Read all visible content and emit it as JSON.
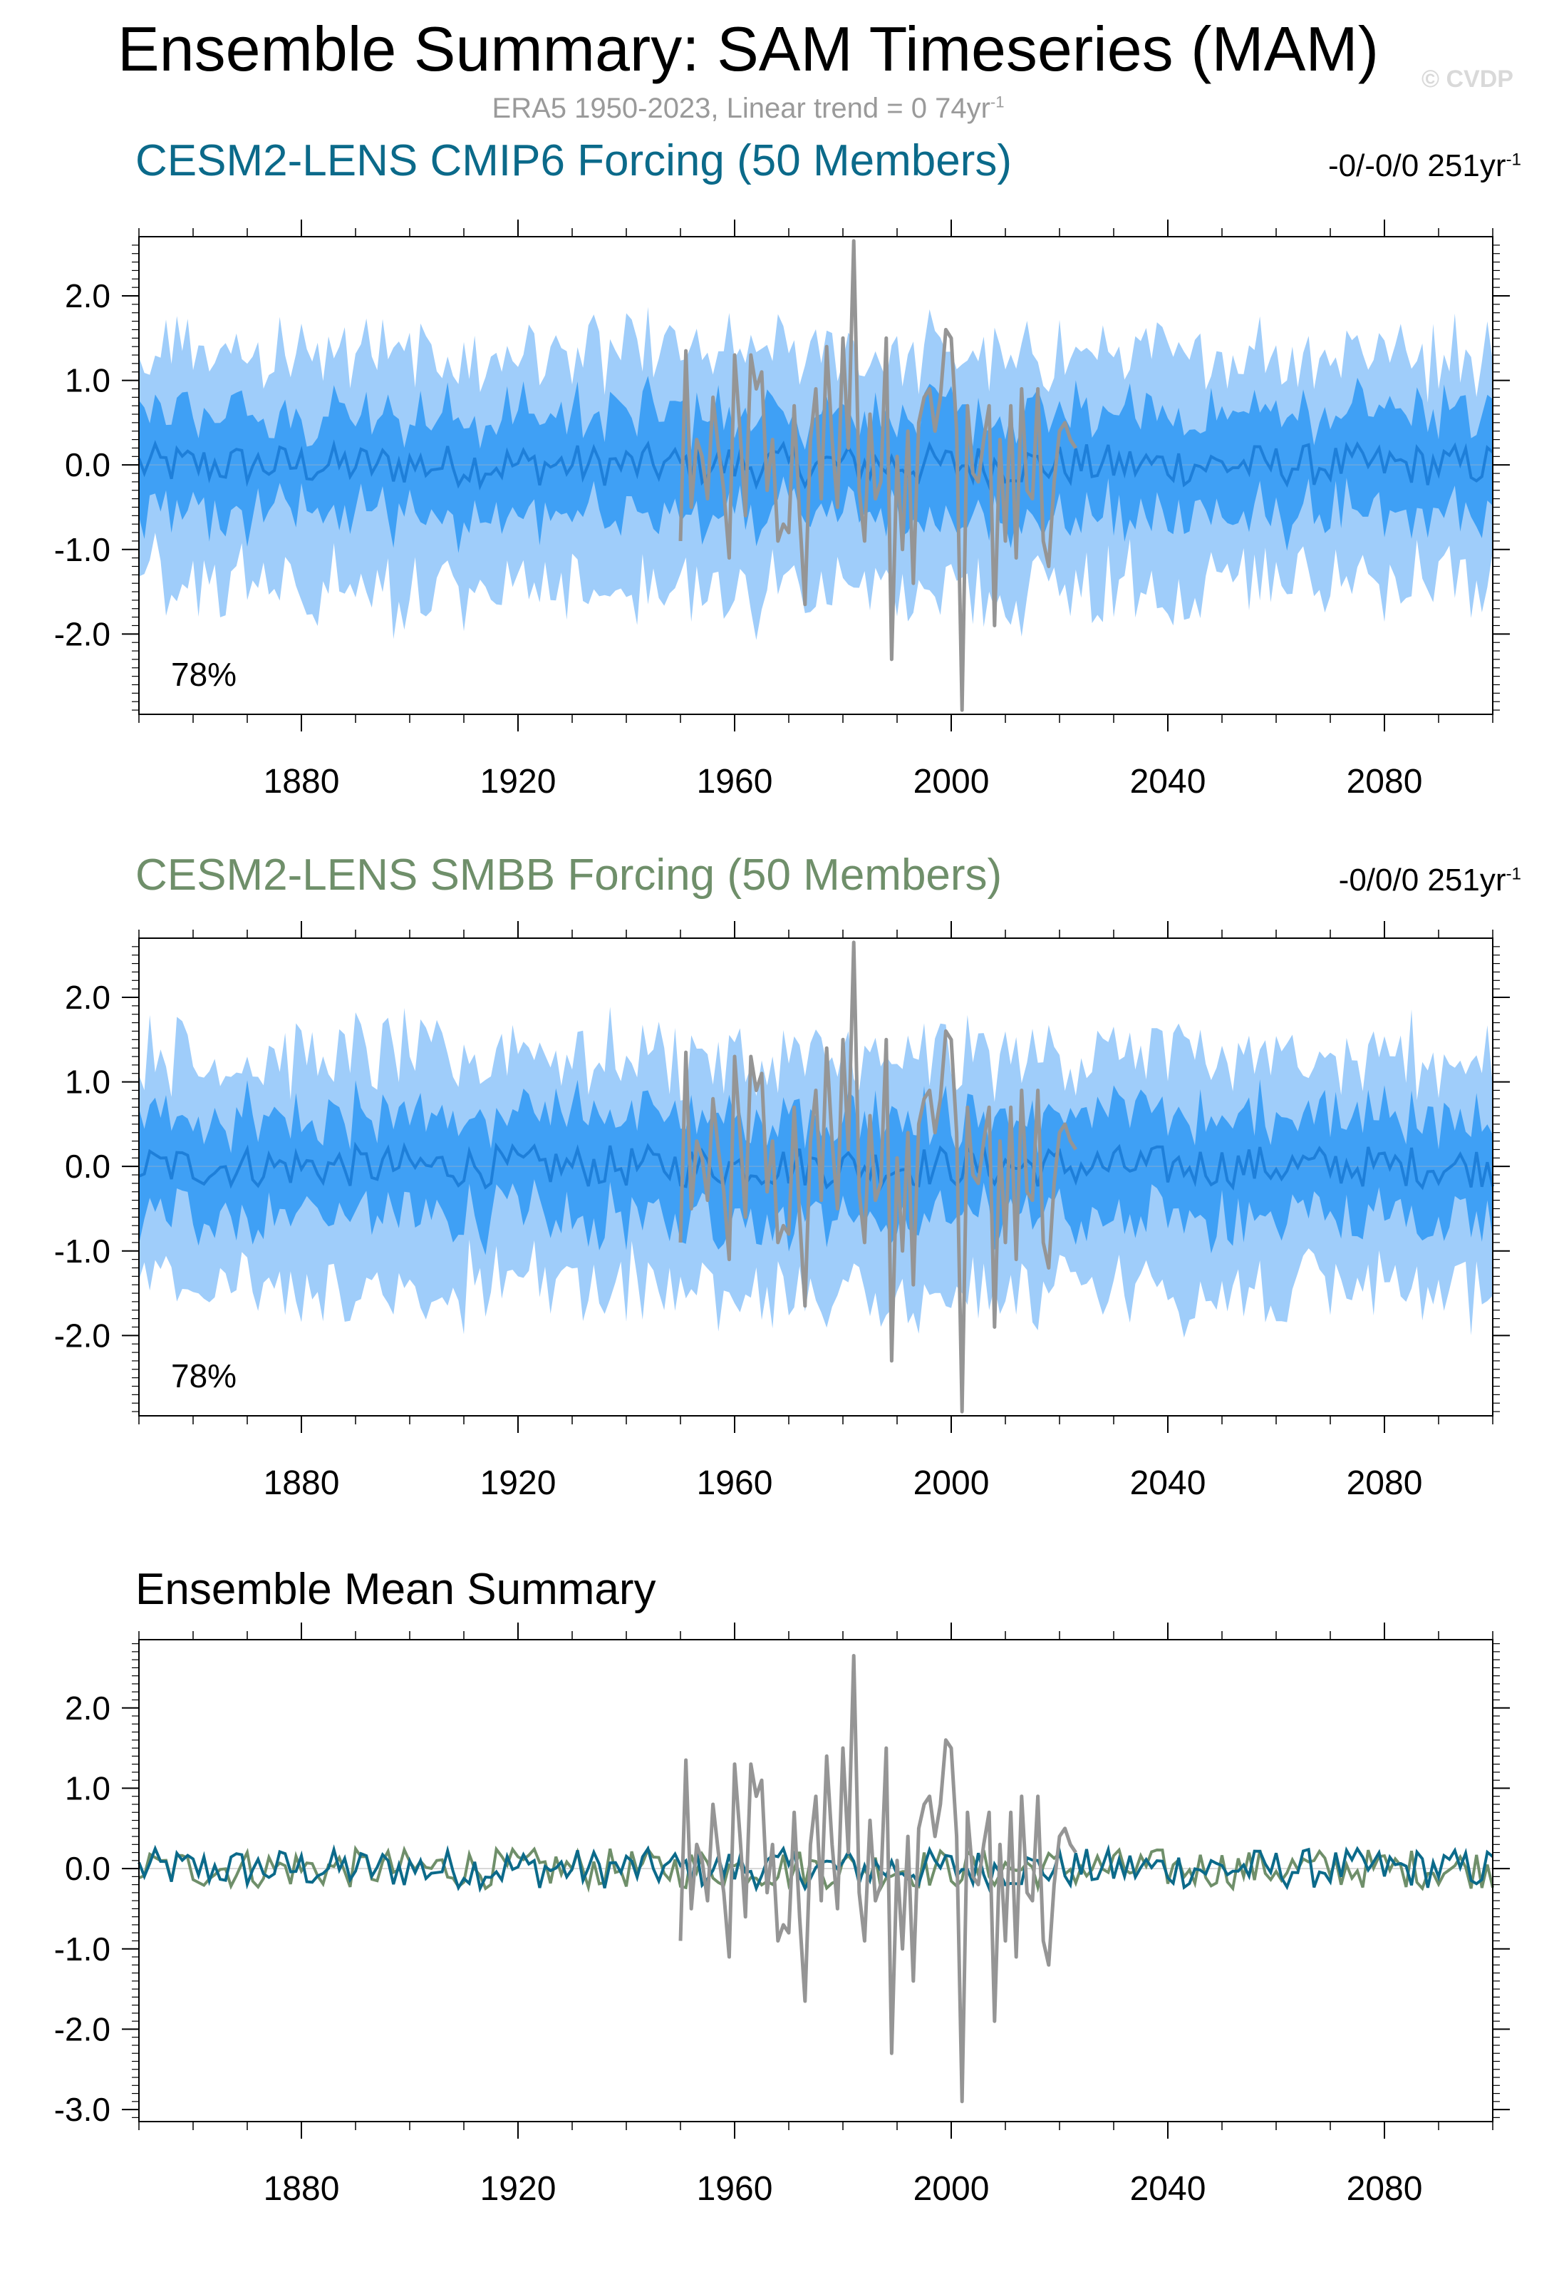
{
  "header": {
    "title": "Ensemble Summary: SAM Timeseries (MAM)",
    "subtitle": "ERA5 1950-2023, Linear trend = 0 74yr",
    "subtitle_sup": "-1",
    "watermark": "© CVDP"
  },
  "colors": {
    "band_outer": "#9fcdfa",
    "band_inner": "#3fa0f5",
    "mean_line": "#1e7fd9",
    "obs_line": "#959595",
    "cmip6": "#0b6a8a",
    "smbb": "#6f8f6a"
  },
  "chart_data": [
    {
      "type": "area",
      "title": "CESM2-LENS CMIP6 Forcing (50 Members)",
      "title_color": "#0b6a8a",
      "trend_label": "-0/-0/0 251yr",
      "trend_sup": "-1",
      "annotation": "78%",
      "xlim": [
        1850,
        2100
      ],
      "ylim": [
        -2.95,
        2.7
      ],
      "xticks": [
        1880,
        1920,
        1960,
        2000,
        2040,
        2080
      ],
      "xtick_labels": [
        "1880",
        "1920",
        "1960",
        "2000",
        "2040",
        "2080"
      ],
      "yticks": [
        2,
        1,
        0,
        -1,
        -2
      ],
      "ytick_labels": [
        "2.0",
        "1.0",
        "0.0",
        "-1.0",
        "-2.0"
      ],
      "series": [
        {
          "name": "",
          "style": "band-outer",
          "values": "10-90 percentile, approx ±1.3"
        },
        {
          "name": "",
          "style": "band-inner",
          "values": "25-75 percentile, approx ±0.6"
        },
        {
          "name": "",
          "style": "ensemble-mean",
          "values": "approx 0"
        },
        {
          "name": "",
          "style": "observations",
          "years": [
            1950,
            2023
          ]
        }
      ]
    },
    {
      "type": "area",
      "title": "CESM2-LENS SMBB Forcing (50 Members)",
      "title_color": "#6f8f6a",
      "trend_label": "-0/0/0 251yr",
      "trend_sup": "-1",
      "annotation": "78%",
      "xlim": [
        1850,
        2100
      ],
      "ylim": [
        -2.95,
        2.7
      ],
      "xticks": [
        1880,
        1920,
        1960,
        2000,
        2040,
        2080
      ],
      "xtick_labels": [
        "1880",
        "1920",
        "1960",
        "2000",
        "2040",
        "2080"
      ],
      "yticks": [
        2,
        1,
        0,
        -1,
        -2
      ],
      "ytick_labels": [
        "2.0",
        "1.0",
        "0.0",
        "-1.0",
        "-2.0"
      ],
      "series": [
        {
          "name": "",
          "style": "band-outer",
          "values": "approx ±1.3"
        },
        {
          "name": "",
          "style": "band-inner",
          "values": "approx ±0.6"
        },
        {
          "name": "",
          "style": "ensemble-mean",
          "values": "approx 0"
        },
        {
          "name": "",
          "style": "observations",
          "years": [
            1950,
            2023
          ]
        }
      ]
    },
    {
      "type": "line",
      "title": "Ensemble Mean Summary",
      "title_color": "#000000",
      "xlim": [
        1850,
        2100
      ],
      "ylim": [
        -3.15,
        2.85
      ],
      "xticks": [
        1880,
        1920,
        1960,
        2000,
        2040,
        2080
      ],
      "xtick_labels": [
        "1880",
        "1920",
        "1960",
        "2000",
        "2040",
        "2080"
      ],
      "yticks": [
        2,
        1,
        0,
        -1,
        -2,
        -3
      ],
      "ytick_labels": [
        "2.0",
        "1.0",
        "0.0",
        "-1.0",
        "-2.0",
        "-3.0"
      ],
      "series": [
        {
          "name": "",
          "style": "cmip6-mean"
        },
        {
          "name": "",
          "style": "smbb-mean"
        },
        {
          "name": "",
          "style": "observations",
          "years": [
            1950,
            2023
          ]
        }
      ]
    }
  ],
  "observations": {
    "years": [
      1950,
      1951,
      1952,
      1953,
      1954,
      1955,
      1956,
      1957,
      1958,
      1959,
      1960,
      1961,
      1962,
      1963,
      1964,
      1965,
      1966,
      1967,
      1968,
      1969,
      1970,
      1971,
      1972,
      1973,
      1974,
      1975,
      1976,
      1977,
      1978,
      1979,
      1980,
      1981,
      1982,
      1983,
      1984,
      1985,
      1986,
      1987,
      1988,
      1989,
      1990,
      1991,
      1992,
      1993,
      1994,
      1995,
      1996,
      1997,
      1998,
      1999,
      2000,
      2001,
      2002,
      2003,
      2004,
      2005,
      2006,
      2007,
      2008,
      2009,
      2010,
      2011,
      2012,
      2013,
      2014,
      2015,
      2016,
      2017,
      2018,
      2019,
      2020,
      2021,
      2022,
      2023
    ],
    "values": [
      -0.9,
      1.35,
      -0.5,
      0.3,
      0.1,
      -0.4,
      0.8,
      0.2,
      -0.3,
      -1.1,
      1.3,
      0.4,
      -0.6,
      1.3,
      0.9,
      1.1,
      -0.3,
      0.3,
      -0.9,
      -0.7,
      -0.8,
      0.7,
      -0.6,
      -1.65,
      0.3,
      0.9,
      -0.4,
      1.4,
      0.3,
      -0.5,
      1.5,
      0.2,
      2.65,
      -0.3,
      -0.9,
      0.6,
      -0.4,
      -0.2,
      1.5,
      -2.3,
      0.1,
      -1.0,
      0.4,
      -1.4,
      0.5,
      0.8,
      0.9,
      0.4,
      0.8,
      1.6,
      1.5,
      0.4,
      -2.9,
      0.7,
      -0.1,
      -0.2,
      0.3,
      0.7,
      -1.9,
      0.3,
      -0.9,
      0.7,
      -1.1,
      0.9,
      -0.3,
      -0.4,
      0.9,
      -0.9,
      -1.2,
      -0.2,
      0.4,
      0.5,
      0.3,
      0.2
    ]
  }
}
